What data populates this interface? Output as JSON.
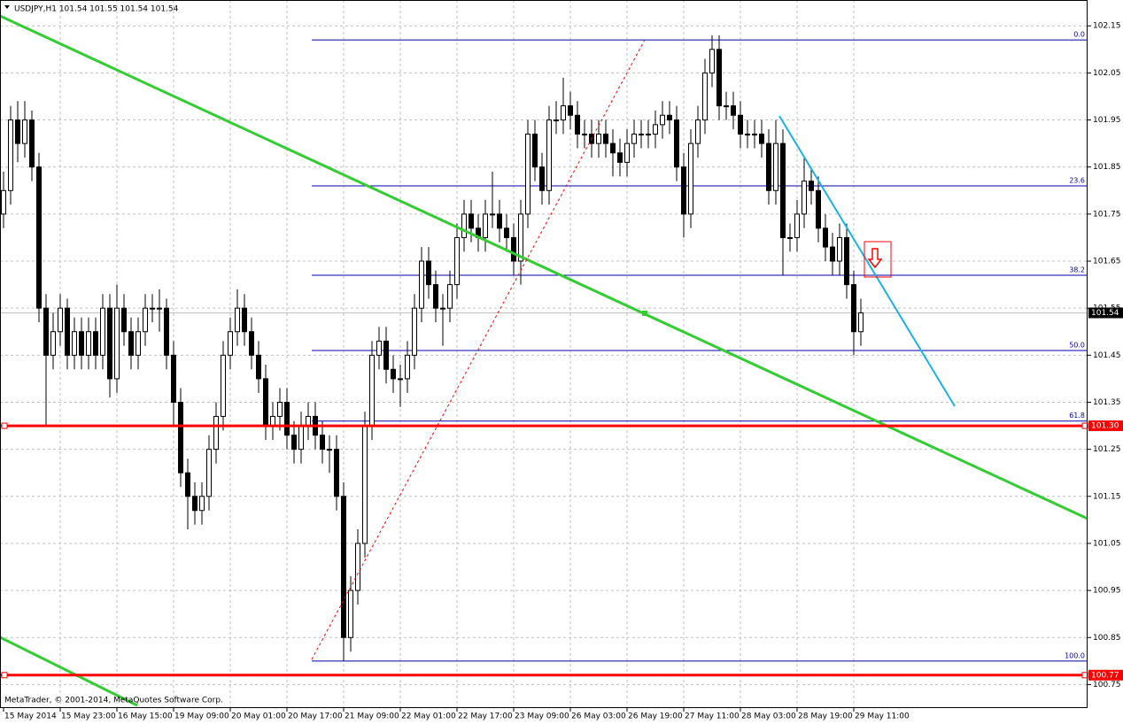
{
  "header": {
    "title": "USDJPY,H1  101.54 101.55 101.54 101.54"
  },
  "footer": {
    "copyright": "MetaTrader, © 2001-2014, MetaQuotes Software Corp."
  },
  "chart_data": {
    "type": "candlestick",
    "ylim": [
      100.7,
      102.205
    ],
    "yticks": [
      102.15,
      102.05,
      101.95,
      101.85,
      101.75,
      101.65,
      101.55,
      101.45,
      101.35,
      101.25,
      101.15,
      101.05,
      100.95,
      100.85,
      100.75
    ],
    "grid": true,
    "xticks": [
      "15 May 2014",
      "15 May 23:00",
      "16 May 15:00",
      "19 May 09:00",
      "20 May 01:00",
      "20 May 17:00",
      "21 May 09:00",
      "22 May 01:00",
      "22 May 17:00",
      "23 May 09:00",
      "26 May 03:00",
      "26 May 19:00",
      "27 May 11:00",
      "28 May 03:00",
      "28 May 19:00",
      "29 May 11:00"
    ],
    "current_price": {
      "value": 101.54,
      "color": "#000000"
    },
    "hlines": [
      {
        "value": 101.3,
        "label": "101.30",
        "color": "#ff0000"
      },
      {
        "value": 100.77,
        "label": "100.77",
        "color": "#ff0000"
      }
    ],
    "fib_levels": [
      {
        "label": "0.0",
        "price": 102.12
      },
      {
        "label": "23.6",
        "price": 101.81
      },
      {
        "label": "38.2",
        "price": 101.62
      },
      {
        "label": "50.0",
        "price": 101.46
      },
      {
        "label": "61.8",
        "price": 101.31
      },
      {
        "label": "100.0",
        "price": 100.8
      }
    ],
    "ohlc": [
      [
        101.75,
        101.84,
        101.72,
        101.8
      ],
      [
        101.8,
        101.98,
        101.77,
        101.95
      ],
      [
        101.95,
        101.99,
        101.86,
        101.9
      ],
      [
        101.9,
        101.99,
        101.87,
        101.95
      ],
      [
        101.95,
        101.97,
        101.82,
        101.85
      ],
      [
        101.85,
        101.88,
        101.52,
        101.55
      ],
      [
        101.55,
        101.58,
        101.3,
        101.45
      ],
      [
        101.45,
        101.54,
        101.42,
        101.5
      ],
      [
        101.5,
        101.58,
        101.47,
        101.55
      ],
      [
        101.55,
        101.57,
        101.42,
        101.45
      ],
      [
        101.45,
        101.53,
        101.42,
        101.5
      ],
      [
        101.5,
        101.53,
        101.42,
        101.45
      ],
      [
        101.45,
        101.53,
        101.42,
        101.5
      ],
      [
        101.5,
        101.53,
        101.42,
        101.45
      ],
      [
        101.45,
        101.58,
        101.42,
        101.55
      ],
      [
        101.55,
        101.58,
        101.36,
        101.4
      ],
      [
        101.4,
        101.6,
        101.37,
        101.55
      ],
      [
        101.55,
        101.58,
        101.47,
        101.5
      ],
      [
        101.5,
        101.53,
        101.42,
        101.45
      ],
      [
        101.45,
        101.53,
        101.42,
        101.5
      ],
      [
        101.5,
        101.58,
        101.47,
        101.55
      ],
      [
        101.55,
        101.58,
        101.52,
        101.55
      ],
      [
        101.55,
        101.59,
        101.5,
        101.55
      ],
      [
        101.55,
        101.57,
        101.42,
        101.45
      ],
      [
        101.45,
        101.48,
        101.3,
        101.35
      ],
      [
        101.35,
        101.38,
        101.17,
        101.2
      ],
      [
        101.2,
        101.23,
        101.08,
        101.15
      ],
      [
        101.15,
        101.18,
        101.09,
        101.12
      ],
      [
        101.12,
        101.18,
        101.09,
        101.15
      ],
      [
        101.15,
        101.28,
        101.12,
        101.25
      ],
      [
        101.25,
        101.35,
        101.22,
        101.32
      ],
      [
        101.32,
        101.48,
        101.29,
        101.45
      ],
      [
        101.45,
        101.53,
        101.42,
        101.5
      ],
      [
        101.5,
        101.59,
        101.47,
        101.55
      ],
      [
        101.55,
        101.58,
        101.47,
        101.5
      ],
      [
        101.5,
        101.53,
        101.42,
        101.45
      ],
      [
        101.45,
        101.48,
        101.37,
        101.4
      ],
      [
        101.4,
        101.43,
        101.27,
        101.3
      ],
      [
        101.3,
        101.35,
        101.27,
        101.32
      ],
      [
        101.32,
        101.38,
        101.29,
        101.35
      ],
      [
        101.35,
        101.38,
        101.25,
        101.28
      ],
      [
        101.28,
        101.31,
        101.22,
        101.25
      ],
      [
        101.25,
        101.33,
        101.22,
        101.3
      ],
      [
        101.3,
        101.35,
        101.27,
        101.32
      ],
      [
        101.32,
        101.35,
        101.25,
        101.28
      ],
      [
        101.28,
        101.31,
        101.22,
        101.25
      ],
      [
        101.25,
        101.28,
        101.2,
        101.25
      ],
      [
        101.25,
        101.28,
        101.12,
        101.15
      ],
      [
        101.15,
        101.18,
        100.8,
        100.85
      ],
      [
        100.85,
        100.98,
        100.82,
        100.95
      ],
      [
        100.95,
        101.08,
        100.92,
        101.05
      ],
      [
        101.05,
        101.33,
        101.02,
        101.3
      ],
      [
        101.3,
        101.48,
        101.27,
        101.45
      ],
      [
        101.45,
        101.51,
        101.42,
        101.48
      ],
      [
        101.48,
        101.51,
        101.39,
        101.42
      ],
      [
        101.42,
        101.45,
        101.37,
        101.4
      ],
      [
        101.4,
        101.43,
        101.34,
        101.4
      ],
      [
        101.4,
        101.48,
        101.37,
        101.45
      ],
      [
        101.45,
        101.58,
        101.42,
        101.55
      ],
      [
        101.55,
        101.68,
        101.52,
        101.65
      ],
      [
        101.65,
        101.68,
        101.57,
        101.6
      ],
      [
        101.6,
        101.63,
        101.52,
        101.55
      ],
      [
        101.55,
        101.58,
        101.47,
        101.55
      ],
      [
        101.55,
        101.63,
        101.52,
        101.6
      ],
      [
        101.6,
        101.73,
        101.57,
        101.7
      ],
      [
        101.7,
        101.78,
        101.67,
        101.75
      ],
      [
        101.75,
        101.78,
        101.69,
        101.72
      ],
      [
        101.72,
        101.75,
        101.67,
        101.7
      ],
      [
        101.7,
        101.78,
        101.67,
        101.75
      ],
      [
        101.75,
        101.84,
        101.72,
        101.75
      ],
      [
        101.75,
        101.78,
        101.69,
        101.72
      ],
      [
        101.72,
        101.75,
        101.67,
        101.7
      ],
      [
        101.7,
        101.73,
        101.62,
        101.65
      ],
      [
        101.65,
        101.78,
        101.6,
        101.75
      ],
      [
        101.75,
        101.95,
        101.72,
        101.92
      ],
      [
        101.92,
        101.95,
        101.82,
        101.85
      ],
      [
        101.85,
        101.88,
        101.77,
        101.8
      ],
      [
        101.8,
        101.98,
        101.77,
        101.95
      ],
      [
        101.95,
        101.99,
        101.92,
        101.95
      ],
      [
        101.95,
        102.04,
        101.92,
        101.98
      ],
      [
        101.98,
        102.01,
        101.93,
        101.96
      ],
      [
        101.96,
        101.99,
        101.89,
        101.92
      ],
      [
        101.92,
        101.95,
        101.89,
        101.92
      ],
      [
        101.92,
        101.95,
        101.87,
        101.9
      ],
      [
        101.9,
        101.95,
        101.87,
        101.92
      ],
      [
        101.92,
        101.95,
        101.87,
        101.9
      ],
      [
        101.9,
        101.93,
        101.83,
        101.88
      ],
      [
        101.88,
        101.91,
        101.83,
        101.86
      ],
      [
        101.86,
        101.93,
        101.83,
        101.9
      ],
      [
        101.9,
        101.95,
        101.87,
        101.92
      ],
      [
        101.92,
        101.95,
        101.89,
        101.92
      ],
      [
        101.92,
        101.95,
        101.89,
        101.92
      ],
      [
        101.92,
        101.97,
        101.89,
        101.94
      ],
      [
        101.94,
        101.99,
        101.91,
        101.96
      ],
      [
        101.96,
        101.99,
        101.92,
        101.95
      ],
      [
        101.95,
        101.98,
        101.82,
        101.85
      ],
      [
        101.85,
        101.88,
        101.7,
        101.75
      ],
      [
        101.75,
        101.93,
        101.72,
        101.9
      ],
      [
        101.9,
        101.98,
        101.87,
        101.95
      ],
      [
        101.95,
        102.08,
        101.92,
        102.05
      ],
      [
        102.05,
        102.13,
        102.02,
        102.1
      ],
      [
        102.1,
        102.13,
        101.95,
        101.98
      ],
      [
        101.98,
        102.01,
        101.95,
        101.98
      ],
      [
        101.98,
        102.01,
        101.93,
        101.96
      ],
      [
        101.96,
        101.99,
        101.89,
        101.92
      ],
      [
        101.92,
        101.95,
        101.89,
        101.92
      ],
      [
        101.92,
        101.95,
        101.89,
        101.92
      ],
      [
        101.92,
        101.95,
        101.87,
        101.9
      ],
      [
        101.9,
        101.93,
        101.77,
        101.8
      ],
      [
        101.8,
        101.95,
        101.77,
        101.9
      ],
      [
        101.9,
        101.93,
        101.62,
        101.7
      ],
      [
        101.7,
        101.73,
        101.67,
        101.7
      ],
      [
        101.7,
        101.78,
        101.67,
        101.75
      ],
      [
        101.75,
        101.87,
        101.72,
        101.82
      ],
      [
        101.82,
        101.85,
        101.77,
        101.8
      ],
      [
        101.8,
        101.83,
        101.69,
        101.72
      ],
      [
        101.72,
        101.75,
        101.65,
        101.68
      ],
      [
        101.68,
        101.71,
        101.62,
        101.65
      ],
      [
        101.65,
        101.73,
        101.62,
        101.7
      ],
      [
        101.7,
        101.73,
        101.57,
        101.6
      ],
      [
        101.6,
        101.63,
        101.45,
        101.5
      ],
      [
        101.5,
        101.57,
        101.47,
        101.54
      ]
    ]
  }
}
